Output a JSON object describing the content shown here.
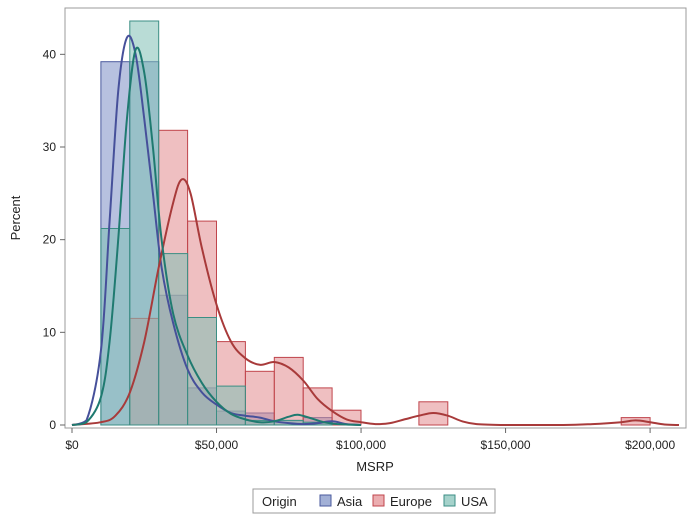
{
  "chart_data": {
    "type": "bar",
    "xlabel": "MSRP",
    "ylabel": "Percent",
    "xlim": [
      0,
      210000
    ],
    "ylim": [
      0,
      45
    ],
    "x_ticks": [
      0,
      50000,
      100000,
      150000,
      200000
    ],
    "x_tick_labels": [
      "$0",
      "$50,000",
      "$100,000",
      "$150,000",
      "$200,000"
    ],
    "y_ticks": [
      0,
      10,
      20,
      30,
      40
    ],
    "y_tick_labels": [
      "0",
      "10",
      "20",
      "30",
      "40"
    ],
    "grid": false,
    "legend": {
      "title": "Origin",
      "position": "bottom-center",
      "entries": [
        "Asia",
        "Europe",
        "USA"
      ]
    },
    "bin_width": 10000,
    "series": [
      {
        "name": "Asia",
        "fill": "#7b8ec4",
        "stroke": "#4a5a9e",
        "curve": "#46509a",
        "bins": [
          [
            10000,
            39.2
          ],
          [
            20000,
            39.2
          ],
          [
            30000,
            14.0
          ],
          [
            40000,
            4.0
          ],
          [
            50000,
            1.5
          ],
          [
            60000,
            1.3
          ],
          [
            70000,
            0.5
          ],
          [
            80000,
            0.8
          ]
        ],
        "density": [
          [
            0,
            0
          ],
          [
            5000,
            0.5
          ],
          [
            10000,
            8
          ],
          [
            13000,
            22
          ],
          [
            16000,
            36
          ],
          [
            19000,
            41.8
          ],
          [
            22000,
            40
          ],
          [
            25000,
            33
          ],
          [
            28000,
            25
          ],
          [
            31000,
            17
          ],
          [
            35000,
            11
          ],
          [
            40000,
            6
          ],
          [
            45000,
            3.5
          ],
          [
            50000,
            2.2
          ],
          [
            55000,
            1.3
          ],
          [
            60000,
            1.0
          ],
          [
            65000,
            0.8
          ],
          [
            70000,
            0.4
          ],
          [
            75000,
            0.2
          ],
          [
            80000,
            0.1
          ],
          [
            85000,
            0.2
          ],
          [
            90000,
            0.4
          ],
          [
            95000,
            0.1
          ],
          [
            100000,
            0
          ]
        ]
      },
      {
        "name": "Europe",
        "fill": "#e28a8e",
        "stroke": "#c0454c",
        "curve": "#a83a3a",
        "bins": [
          [
            20000,
            11.5
          ],
          [
            30000,
            31.8
          ],
          [
            40000,
            22.0
          ],
          [
            50000,
            9.0
          ],
          [
            60000,
            5.8
          ],
          [
            70000,
            7.3
          ],
          [
            80000,
            4.0
          ],
          [
            90000,
            1.6
          ],
          [
            120000,
            2.5
          ],
          [
            190000,
            0.8
          ]
        ],
        "density": [
          [
            0,
            0
          ],
          [
            10000,
            0.3
          ],
          [
            15000,
            1.0
          ],
          [
            20000,
            3.5
          ],
          [
            25000,
            9
          ],
          [
            30000,
            17
          ],
          [
            35000,
            24
          ],
          [
            38000,
            26.5
          ],
          [
            41000,
            25
          ],
          [
            45000,
            19
          ],
          [
            50000,
            13
          ],
          [
            55000,
            9
          ],
          [
            60000,
            7.2
          ],
          [
            65000,
            6.5
          ],
          [
            70000,
            6.8
          ],
          [
            75000,
            6.2
          ],
          [
            80000,
            4.8
          ],
          [
            85000,
            2.8
          ],
          [
            90000,
            1.5
          ],
          [
            95000,
            0.6
          ],
          [
            100000,
            0.3
          ],
          [
            105000,
            0.1
          ],
          [
            110000,
            0.2
          ],
          [
            115000,
            0.6
          ],
          [
            120000,
            1.0
          ],
          [
            125000,
            1.3
          ],
          [
            130000,
            1.0
          ],
          [
            135000,
            0.4
          ],
          [
            140000,
            0.1
          ],
          [
            150000,
            0
          ],
          [
            170000,
            0
          ],
          [
            180000,
            0.1
          ],
          [
            190000,
            0.3
          ],
          [
            195000,
            0.5
          ],
          [
            200000,
            0.3
          ],
          [
            205000,
            0.05
          ],
          [
            210000,
            0
          ]
        ]
      },
      {
        "name": "USA",
        "fill": "#7fbfb5",
        "stroke": "#3b8e84",
        "curve": "#1f7a70",
        "bins": [
          [
            10000,
            21.2
          ],
          [
            20000,
            43.6
          ],
          [
            30000,
            18.5
          ],
          [
            40000,
            11.6
          ],
          [
            50000,
            4.2
          ],
          [
            60000,
            0.5
          ],
          [
            70000,
            0.5
          ],
          [
            80000,
            0.3
          ]
        ],
        "density": [
          [
            0,
            0
          ],
          [
            5000,
            0.3
          ],
          [
            10000,
            3
          ],
          [
            13000,
            9
          ],
          [
            16000,
            20
          ],
          [
            19000,
            33
          ],
          [
            22000,
            40.5
          ],
          [
            25000,
            38
          ],
          [
            28000,
            30
          ],
          [
            31000,
            20
          ],
          [
            35000,
            12
          ],
          [
            40000,
            7.5
          ],
          [
            45000,
            4.5
          ],
          [
            50000,
            2.5
          ],
          [
            55000,
            1.2
          ],
          [
            60000,
            0.6
          ],
          [
            65000,
            0.3
          ],
          [
            70000,
            0.4
          ],
          [
            75000,
            0.9
          ],
          [
            78000,
            1.1
          ],
          [
            82000,
            0.8
          ],
          [
            87000,
            0.3
          ],
          [
            92000,
            0.1
          ],
          [
            100000,
            0
          ]
        ]
      }
    ]
  }
}
